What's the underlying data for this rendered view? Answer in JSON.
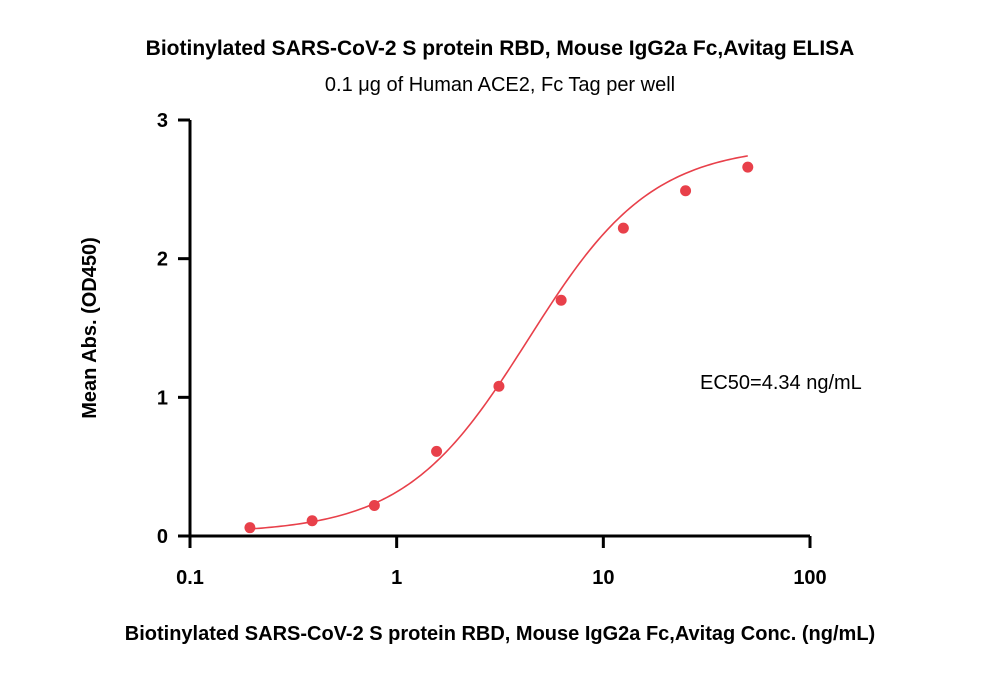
{
  "chart_data": {
    "type": "scatter",
    "title": "Biotinylated SARS-CoV-2 S protein RBD, Mouse IgG2a Fc,Avitag ELISA",
    "subtitle": "0.1 μg of Human ACE2, Fc Tag  per well",
    "xlabel": "Biotinylated SARS-CoV-2 S protein RBD, Mouse IgG2a Fc,Avitag Conc. (ng/mL)",
    "ylabel": "Mean Abs. (OD450)",
    "x_scale": "log",
    "xlim": [
      0.1,
      100
    ],
    "ylim": [
      0,
      3
    ],
    "x_ticks": [
      {
        "value": 0.1,
        "label": "0.1"
      },
      {
        "value": 1,
        "label": "1"
      },
      {
        "value": 10,
        "label": "10"
      },
      {
        "value": 100,
        "label": "100"
      }
    ],
    "y_ticks": [
      {
        "value": 0,
        "label": "0"
      },
      {
        "value": 1,
        "label": "1"
      },
      {
        "value": 2,
        "label": "2"
      },
      {
        "value": 3,
        "label": "3"
      }
    ],
    "series": [
      {
        "color": "#e8404a",
        "x": [
          0.195,
          0.39,
          0.78,
          1.56,
          3.125,
          6.25,
          12.5,
          25,
          50
        ],
        "y": [
          0.06,
          0.11,
          0.22,
          0.61,
          1.08,
          1.7,
          2.22,
          2.49,
          2.66
        ]
      }
    ],
    "fit": {
      "model": "4PL",
      "bottom": 0.02,
      "top": 2.82,
      "ec50": 4.34,
      "hill": 1.45,
      "color": "#e8404a"
    },
    "annotation": "EC50=4.34 ng/mL",
    "grid": false
  }
}
